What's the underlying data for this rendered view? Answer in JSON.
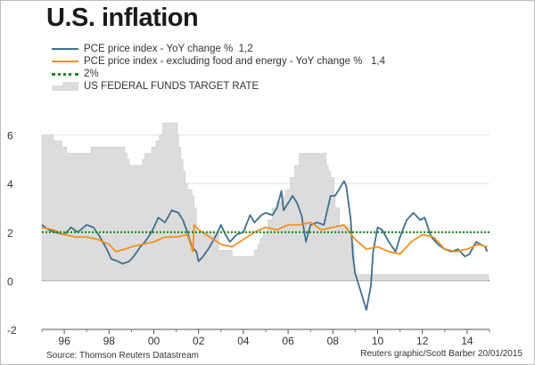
{
  "title": "U.S. inflation",
  "legend": [
    {
      "label": "PCE price index - YoY change %  1,2",
      "color": "#3e6f8e",
      "kind": "line"
    },
    {
      "label": "PCE price index - excluding food and energy - YoY change %   1,4",
      "color": "#f0901e",
      "kind": "line"
    },
    {
      "label": "2%",
      "color": "#1a8c1a",
      "kind": "dotted"
    },
    {
      "label": "US FEDERAL FUNDS TARGET RATE",
      "color": "#dcdcdc",
      "kind": "area"
    }
  ],
  "source": "Source: Thomson Reuters Datastream",
  "credit": "Reuters graphic/Scott Barber 20/01/2015",
  "chart_data": {
    "type": "line",
    "title": "U.S. inflation",
    "xlim": [
      1995.0,
      2015.0
    ],
    "ylim": [
      -2,
      6.5
    ],
    "y_ticks": [
      -2,
      0,
      2,
      4,
      6
    ],
    "y_tick_labels": [
      "-2",
      "0",
      "2",
      "4",
      "6"
    ],
    "x_ticks": [
      1996,
      1998,
      2000,
      2002,
      2004,
      2006,
      2008,
      2010,
      2012,
      2014
    ],
    "x_tick_labels": [
      "96",
      "98",
      "00",
      "02",
      "04",
      "06",
      "08",
      "10",
      "12",
      "14"
    ],
    "grid": "horizontal",
    "legend_position": "top-left",
    "series": [
      {
        "name": "US FEDERAL FUNDS TARGET RATE",
        "kind": "step-area",
        "color": "#dcdcdc",
        "x": [
          1995.0,
          1995.5,
          1995.9,
          1996.1,
          1997.2,
          1998.7,
          1998.8,
          1998.9,
          1999.5,
          1999.6,
          1999.9,
          2000.1,
          2000.25,
          2000.4,
          2001.05,
          2001.1,
          2001.2,
          2001.3,
          2001.4,
          2001.5,
          2001.7,
          2001.8,
          2001.9,
          2002.9,
          2003.5,
          2004.5,
          2004.65,
          2004.75,
          2004.9,
          2005.1,
          2005.3,
          2005.5,
          2005.7,
          2005.9,
          2006.1,
          2006.3,
          2006.5,
          2007.7,
          2007.8,
          2007.9,
          2008.05,
          2008.1,
          2008.3,
          2008.8,
          2008.95,
          2014.95
        ],
        "y": [
          6.0,
          5.75,
          5.5,
          5.25,
          5.5,
          5.25,
          5.0,
          4.75,
          5.0,
          5.25,
          5.5,
          5.75,
          6.0,
          6.5,
          6.0,
          5.5,
          5.0,
          4.5,
          4.0,
          3.75,
          3.5,
          3.0,
          2.0,
          1.25,
          1.0,
          1.25,
          1.5,
          1.75,
          2.0,
          2.5,
          3.0,
          3.25,
          3.5,
          3.75,
          4.25,
          4.75,
          5.25,
          4.75,
          4.5,
          4.25,
          3.5,
          3.0,
          2.25,
          1.5,
          0.25,
          0.25
        ]
      },
      {
        "name": "PCE price index - YoY change %  1,2",
        "color": "#3e6f8e",
        "x": [
          1995.0,
          1995.3,
          1995.6,
          1996.0,
          1996.3,
          1996.6,
          1997.0,
          1997.3,
          1997.6,
          1997.9,
          1998.1,
          1998.4,
          1998.6,
          1998.9,
          1999.1,
          1999.4,
          1999.6,
          1999.9,
          2000.2,
          2000.5,
          2000.8,
          2001.1,
          2001.3,
          2001.5,
          2001.7,
          2001.9,
          2002.0,
          2002.2,
          2002.5,
          2002.8,
          2003.0,
          2003.2,
          2003.4,
          2003.7,
          2004.0,
          2004.3,
          2004.5,
          2004.8,
          2005.0,
          2005.3,
          2005.5,
          2005.7,
          2005.8,
          2006.0,
          2006.2,
          2006.4,
          2006.6,
          2006.8,
          2007.0,
          2007.3,
          2007.6,
          2007.9,
          2008.1,
          2008.3,
          2008.5,
          2008.6,
          2008.8,
          2008.9,
          2009.0,
          2009.2,
          2009.4,
          2009.5,
          2009.7,
          2009.8,
          2010.0,
          2010.2,
          2010.5,
          2010.8,
          2011.0,
          2011.3,
          2011.6,
          2011.9,
          2012.1,
          2012.4,
          2012.7,
          2013.0,
          2013.3,
          2013.6,
          2013.9,
          2014.1,
          2014.4,
          2014.6,
          2014.8,
          2014.9
        ],
        "y": [
          2.3,
          2.1,
          2.0,
          1.9,
          2.2,
          2.0,
          2.3,
          2.2,
          1.8,
          1.3,
          0.9,
          0.8,
          0.7,
          0.8,
          1.0,
          1.4,
          1.6,
          2.0,
          2.6,
          2.4,
          2.9,
          2.8,
          2.5,
          2.0,
          1.4,
          1.2,
          0.8,
          1.0,
          1.4,
          1.9,
          2.3,
          1.9,
          1.6,
          1.9,
          2.0,
          2.7,
          2.4,
          2.7,
          2.8,
          2.7,
          3.0,
          3.7,
          2.9,
          3.2,
          3.5,
          3.2,
          2.7,
          1.6,
          2.3,
          2.4,
          2.3,
          3.5,
          3.5,
          3.8,
          4.1,
          3.9,
          2.5,
          1.0,
          0.3,
          -0.3,
          -0.9,
          -1.2,
          -0.2,
          1.2,
          2.2,
          2.1,
          1.6,
          1.2,
          1.8,
          2.5,
          2.8,
          2.5,
          2.6,
          1.8,
          1.5,
          1.3,
          1.2,
          1.3,
          1.0,
          1.1,
          1.6,
          1.5,
          1.4,
          1.2
        ]
      },
      {
        "name": "PCE price index - excluding food and energy - YoY change %   1,4",
        "color": "#f0901e",
        "x": [
          1995.0,
          1995.5,
          1996.0,
          1996.5,
          1997.0,
          1997.5,
          1998.0,
          1998.3,
          1998.7,
          1999.0,
          1999.5,
          2000.0,
          2000.5,
          2001.0,
          2001.5,
          2001.75,
          2001.8,
          2002.0,
          2002.5,
          2003.0,
          2003.5,
          2004.0,
          2004.5,
          2005.0,
          2005.5,
          2006.0,
          2006.5,
          2007.0,
          2007.5,
          2008.0,
          2008.5,
          2009.0,
          2009.5,
          2010.0,
          2010.5,
          2011.0,
          2011.5,
          2012.0,
          2012.5,
          2013.0,
          2013.5,
          2014.0,
          2014.5,
          2014.9
        ],
        "y": [
          2.2,
          2.1,
          1.9,
          1.8,
          1.8,
          1.7,
          1.5,
          1.2,
          1.3,
          1.4,
          1.5,
          1.6,
          1.8,
          1.8,
          1.9,
          1.2,
          2.3,
          2.1,
          1.8,
          1.5,
          1.4,
          1.7,
          2.0,
          2.2,
          2.1,
          2.3,
          2.3,
          2.4,
          2.1,
          2.2,
          2.3,
          1.7,
          1.3,
          1.4,
          1.2,
          1.1,
          1.6,
          1.9,
          1.8,
          1.3,
          1.2,
          1.3,
          1.5,
          1.4
        ]
      },
      {
        "name": "2%",
        "kind": "dotted",
        "color": "#1a8c1a",
        "x": [
          1995.0,
          2015.0
        ],
        "y": [
          2.0,
          2.0
        ]
      }
    ]
  }
}
